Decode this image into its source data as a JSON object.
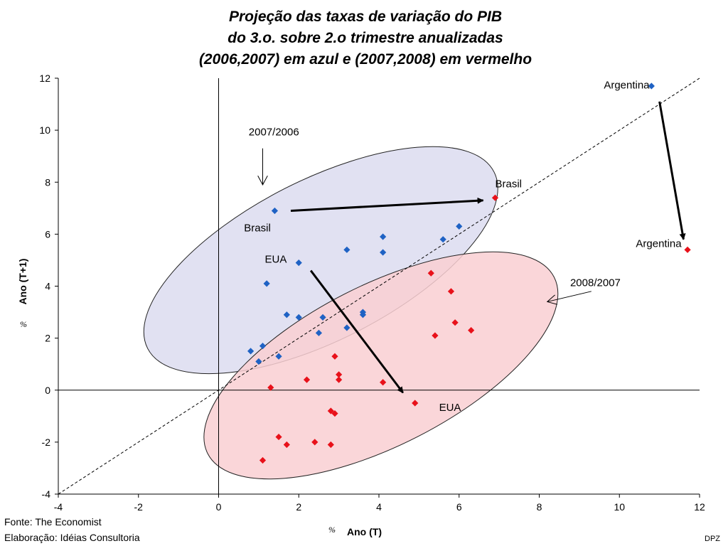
{
  "footer": {
    "source": "Fonte: The Economist",
    "credit": "Elaboração: Idéias Consultoria",
    "tag": "DPZ"
  },
  "chart_data": {
    "type": "scatter",
    "title": [
      "Projeção das taxas de variação do PIB",
      "do 3.o. sobre 2.o trimestre anualizadas",
      "(2006,2007) em azul e (2007,2008) em vermelho"
    ],
    "xlabel": "Ano (T)",
    "ylabel": "Ano (T+1)",
    "x_unit": "%",
    "y_unit": "%",
    "xlim": [
      -4,
      12
    ],
    "ylim": [
      -4,
      12
    ],
    "x_ticks": [
      -4,
      -2,
      0,
      2,
      4,
      6,
      8,
      10,
      12
    ],
    "y_ticks": [
      -4,
      -2,
      0,
      2,
      4,
      6,
      8,
      10,
      12
    ],
    "grid": false,
    "reference_line": "y = x (dashed)",
    "colors": {
      "blue": "#1f62c4",
      "red": "#e8111a",
      "blue_ellipse": "#dcdcf0",
      "red_ellipse": "#f9cfd2"
    },
    "series": [
      {
        "color": "blue",
        "points": [
          [
            10.8,
            11.7
          ],
          [
            1.4,
            6.9
          ],
          [
            6.0,
            6.3
          ],
          [
            4.1,
            5.9
          ],
          [
            5.6,
            5.8
          ],
          [
            3.2,
            5.4
          ],
          [
            4.1,
            5.3
          ],
          [
            2.0,
            4.9
          ],
          [
            1.2,
            4.1
          ],
          [
            3.6,
            3.0
          ],
          [
            3.6,
            2.9
          ],
          [
            1.7,
            2.9
          ],
          [
            2.0,
            2.8
          ],
          [
            2.6,
            2.8
          ],
          [
            3.2,
            2.4
          ],
          [
            2.5,
            2.2
          ],
          [
            1.1,
            1.7
          ],
          [
            0.8,
            1.5
          ],
          [
            1.5,
            1.3
          ],
          [
            1.0,
            1.1
          ]
        ]
      },
      {
        "color": "red",
        "points": [
          [
            11.7,
            5.4
          ],
          [
            6.9,
            7.4
          ],
          [
            5.3,
            4.5
          ],
          [
            5.8,
            3.8
          ],
          [
            5.9,
            2.6
          ],
          [
            6.3,
            2.3
          ],
          [
            5.4,
            2.1
          ],
          [
            2.9,
            1.3
          ],
          [
            3.0,
            0.6
          ],
          [
            3.0,
            0.4
          ],
          [
            2.2,
            0.4
          ],
          [
            4.1,
            0.3
          ],
          [
            1.3,
            0.1
          ],
          [
            4.9,
            -0.5
          ],
          [
            2.8,
            -0.8
          ],
          [
            2.9,
            -0.9
          ],
          [
            1.5,
            -1.8
          ],
          [
            2.4,
            -2.0
          ],
          [
            1.7,
            -2.1
          ],
          [
            2.8,
            -2.1
          ],
          [
            1.1,
            -2.7
          ]
        ]
      }
    ],
    "ellipses": [
      {
        "color": "blue_ellipse",
        "center": [
          2.55,
          5.0
        ],
        "rx_units": 4.85,
        "ry_units": 2.0,
        "angle_deg": 27
      },
      {
        "color": "red_ellipse",
        "center": [
          4.05,
          0.95
        ],
        "rx_units": 4.85,
        "ry_units": 2.0,
        "angle_deg": 27
      }
    ],
    "annotations": [
      {
        "text": "Argentina",
        "x": 10.75,
        "y": 11.6,
        "anchor": "end"
      },
      {
        "text": "Brasil",
        "x": 6.9,
        "y": 7.8,
        "anchor": "start"
      },
      {
        "text": "Argentina",
        "x": 11.55,
        "y": 5.5,
        "anchor": "end"
      },
      {
        "text": "Brasil",
        "x": 1.3,
        "y": 6.1,
        "anchor": "end"
      },
      {
        "text": "EUA",
        "x": 1.7,
        "y": 4.9,
        "anchor": "end"
      },
      {
        "text": "EUA",
        "x": 5.5,
        "y": -0.8,
        "anchor": "start"
      },
      {
        "text": "2007/2006",
        "x": 0.75,
        "y": 9.8,
        "anchor": "start"
      },
      {
        "text": "2008/2007",
        "x": 9.4,
        "y": 4.0,
        "anchor": "middle"
      }
    ],
    "arrows": [
      {
        "from": [
          1.8,
          6.9
        ],
        "to": [
          6.6,
          7.3
        ],
        "style": "bold"
      },
      {
        "from": [
          11.0,
          11.1
        ],
        "to": [
          11.6,
          5.8
        ],
        "style": "bold"
      },
      {
        "from": [
          2.3,
          4.6
        ],
        "to": [
          4.6,
          -0.1
        ],
        "style": "bold"
      },
      {
        "from": [
          1.1,
          9.3
        ],
        "to": [
          1.1,
          7.9
        ],
        "style": "thin"
      },
      {
        "from": [
          9.3,
          3.8
        ],
        "to": [
          8.2,
          3.4
        ],
        "style": "thin"
      }
    ]
  }
}
